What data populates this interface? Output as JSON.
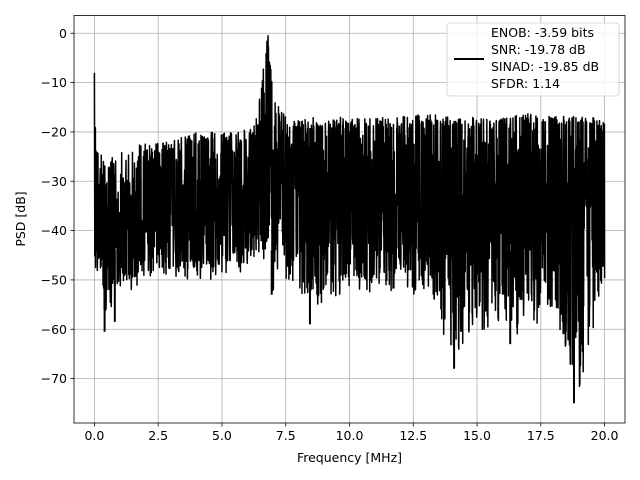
{
  "chart_data": {
    "type": "line",
    "title": "",
    "xlabel": "Frequency [MHz]",
    "ylabel": "PSD [dB]",
    "xlim": [
      -0.8,
      20.8
    ],
    "ylim": [
      -79,
      3.6
    ],
    "xticks": [
      0.0,
      2.5,
      5.0,
      7.5,
      10.0,
      12.5,
      15.0,
      17.5,
      20.0
    ],
    "xtick_labels": [
      "0.0",
      "2.5",
      "5.0",
      "7.5",
      "10.0",
      "12.5",
      "15.0",
      "17.5",
      "20.0"
    ],
    "yticks": [
      0,
      -10,
      -20,
      -30,
      -40,
      -50,
      -60,
      -70
    ],
    "ytick_labels": [
      "0",
      "−10",
      "−20",
      "−30",
      "−40",
      "−50",
      "−60",
      "−70"
    ],
    "grid": true,
    "legend_position": "top-right",
    "series": [
      {
        "color": "#000000",
        "x": [
          0.0,
          0.05,
          0.1,
          0.3,
          0.5,
          0.7,
          1.0,
          1.5,
          2.0,
          2.5,
          3.0,
          3.5,
          4.0,
          4.5,
          5.0,
          5.5,
          6.0,
          6.3,
          6.5,
          6.6,
          6.7,
          6.8,
          6.9,
          7.0,
          7.2,
          7.5,
          8.0,
          8.5,
          9.0,
          10.0,
          11.0,
          12.0,
          13.0,
          14.0,
          15.0,
          16.0,
          17.0,
          18.0,
          19.0,
          20.0
        ],
        "upper": [
          -8,
          -20,
          -22,
          -24,
          -26,
          -25,
          -24,
          -23,
          -22,
          -22,
          -21,
          -21,
          -20,
          -20,
          -20,
          -20,
          -19,
          -16,
          -12,
          -8,
          -4,
          0,
          -6,
          -10,
          -14,
          -17,
          -17,
          -17,
          -17,
          -17,
          -17,
          -17,
          -16,
          -17,
          -17,
          -17,
          -16,
          -16,
          -17,
          -17
        ],
        "lower": [
          -52,
          -52,
          -50,
          -55,
          -60,
          -55,
          -52,
          -52,
          -52,
          -50,
          -50,
          -50,
          -50,
          -50,
          -49,
          -48,
          -49,
          -48,
          -47,
          -47,
          -46,
          -45,
          -47,
          -53,
          -50,
          -50,
          -51,
          -58,
          -55,
          -52,
          -53,
          -53,
          -53,
          -67,
          -60,
          -62,
          -61,
          -58,
          -74,
          -50
        ]
      }
    ],
    "annotations": {
      "min_dips": [
        {
          "x": 0.4,
          "y": -60.5
        },
        {
          "x": 0.8,
          "y": -58.5
        },
        {
          "x": 6.95,
          "y": -53
        },
        {
          "x": 8.45,
          "y": -59
        },
        {
          "x": 14.1,
          "y": -68
        },
        {
          "x": 16.3,
          "y": -63
        },
        {
          "x": 18.8,
          "y": -75
        }
      ]
    }
  },
  "legend": {
    "lines": [
      "ENOB: -3.59 bits",
      "SNR: -19.78 dB",
      "SINAD: -19.85 dB",
      "SFDR: 1.14"
    ]
  }
}
